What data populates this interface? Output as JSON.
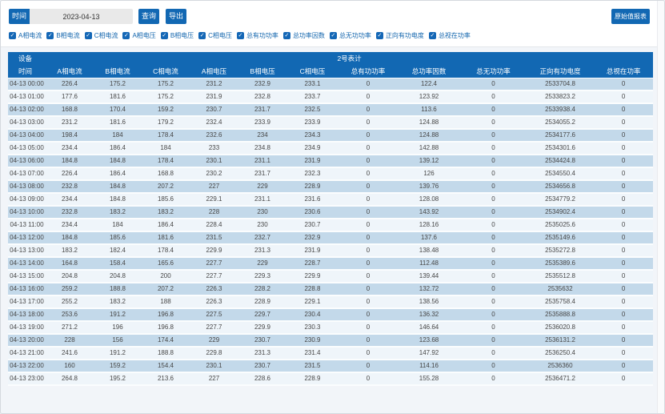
{
  "toolbar": {
    "time_label": "时间",
    "date_value": "2023-04-13",
    "query_label": "查询",
    "export_label": "导出",
    "refresh_label": "原始值报表"
  },
  "filters": {
    "items": [
      {
        "label": "A相电流",
        "checked": true
      },
      {
        "label": "B相电流",
        "checked": true
      },
      {
        "label": "C相电流",
        "checked": true
      },
      {
        "label": "A相电压",
        "checked": true
      },
      {
        "label": "B相电压",
        "checked": true
      },
      {
        "label": "C相电压",
        "checked": true
      },
      {
        "label": "总有功功率",
        "checked": true
      },
      {
        "label": "总功率因数",
        "checked": true
      },
      {
        "label": "总无功功率",
        "checked": true
      },
      {
        "label": "正向有功电度",
        "checked": true
      },
      {
        "label": "总视在功率",
        "checked": true
      }
    ]
  },
  "table": {
    "device_label": "设备",
    "device_name": "2号表计",
    "columns": [
      "时间",
      "A相电流",
      "B相电流",
      "C相电流",
      "A相电压",
      "B相电压",
      "C相电压",
      "总有功功率",
      "总功率因数",
      "总无功功率",
      "正向有功电度",
      "总视在功率"
    ],
    "rows": [
      [
        "04-13 00:00",
        "226.4",
        "175.2",
        "175.2",
        "231.2",
        "232.9",
        "233.1",
        "0",
        "122.4",
        "0",
        "2533704.8",
        "0"
      ],
      [
        "04-13 01:00",
        "177.6",
        "181.6",
        "175.2",
        "231.9",
        "232.8",
        "233.7",
        "0",
        "123.92",
        "0",
        "2533823.2",
        "0"
      ],
      [
        "04-13 02:00",
        "168.8",
        "170.4",
        "159.2",
        "230.7",
        "231.7",
        "232.5",
        "0",
        "113.6",
        "0",
        "2533938.4",
        "0"
      ],
      [
        "04-13 03:00",
        "231.2",
        "181.6",
        "179.2",
        "232.4",
        "233.9",
        "233.9",
        "0",
        "124.88",
        "0",
        "2534055.2",
        "0"
      ],
      [
        "04-13 04:00",
        "198.4",
        "184",
        "178.4",
        "232.6",
        "234",
        "234.3",
        "0",
        "124.88",
        "0",
        "2534177.6",
        "0"
      ],
      [
        "04-13 05:00",
        "234.4",
        "186.4",
        "184",
        "233",
        "234.8",
        "234.9",
        "0",
        "142.88",
        "0",
        "2534301.6",
        "0"
      ],
      [
        "04-13 06:00",
        "184.8",
        "184.8",
        "178.4",
        "230.1",
        "231.1",
        "231.9",
        "0",
        "139.12",
        "0",
        "2534424.8",
        "0"
      ],
      [
        "04-13 07:00",
        "226.4",
        "186.4",
        "168.8",
        "230.2",
        "231.7",
        "232.3",
        "0",
        "126",
        "0",
        "2534550.4",
        "0"
      ],
      [
        "04-13 08:00",
        "232.8",
        "184.8",
        "207.2",
        "227",
        "229",
        "228.9",
        "0",
        "139.76",
        "0",
        "2534656.8",
        "0"
      ],
      [
        "04-13 09:00",
        "234.4",
        "184.8",
        "185.6",
        "229.1",
        "231.1",
        "231.6",
        "0",
        "128.08",
        "0",
        "2534779.2",
        "0"
      ],
      [
        "04-13 10:00",
        "232.8",
        "183.2",
        "183.2",
        "228",
        "230",
        "230.6",
        "0",
        "143.92",
        "0",
        "2534902.4",
        "0"
      ],
      [
        "04-13 11:00",
        "234.4",
        "184",
        "186.4",
        "228.4",
        "230",
        "230.7",
        "0",
        "128.16",
        "0",
        "2535025.6",
        "0"
      ],
      [
        "04-13 12:00",
        "184.8",
        "185.6",
        "181.6",
        "231.5",
        "232.7",
        "232.9",
        "0",
        "137.6",
        "0",
        "2535149.6",
        "0"
      ],
      [
        "04-13 13:00",
        "183.2",
        "182.4",
        "178.4",
        "229.9",
        "231.3",
        "231.9",
        "0",
        "138.48",
        "0",
        "2535272.8",
        "0"
      ],
      [
        "04-13 14:00",
        "164.8",
        "158.4",
        "165.6",
        "227.7",
        "229",
        "228.7",
        "0",
        "112.48",
        "0",
        "2535389.6",
        "0"
      ],
      [
        "04-13 15:00",
        "204.8",
        "204.8",
        "200",
        "227.7",
        "229.3",
        "229.9",
        "0",
        "139.44",
        "0",
        "2535512.8",
        "0"
      ],
      [
        "04-13 16:00",
        "259.2",
        "188.8",
        "207.2",
        "226.3",
        "228.2",
        "228.8",
        "0",
        "132.72",
        "0",
        "2535632",
        "0"
      ],
      [
        "04-13 17:00",
        "255.2",
        "183.2",
        "188",
        "226.3",
        "228.9",
        "229.1",
        "0",
        "138.56",
        "0",
        "2535758.4",
        "0"
      ],
      [
        "04-13 18:00",
        "253.6",
        "191.2",
        "196.8",
        "227.5",
        "229.7",
        "230.4",
        "0",
        "136.32",
        "0",
        "2535888.8",
        "0"
      ],
      [
        "04-13 19:00",
        "271.2",
        "196",
        "196.8",
        "227.7",
        "229.9",
        "230.3",
        "0",
        "146.64",
        "0",
        "2536020.8",
        "0"
      ],
      [
        "04-13 20:00",
        "228",
        "156",
        "174.4",
        "229",
        "230.7",
        "230.9",
        "0",
        "123.68",
        "0",
        "2536131.2",
        "0"
      ],
      [
        "04-13 21:00",
        "241.6",
        "191.2",
        "188.8",
        "229.8",
        "231.3",
        "231.4",
        "0",
        "147.92",
        "0",
        "2536250.4",
        "0"
      ],
      [
        "04-13 22:00",
        "160",
        "159.2",
        "154.4",
        "230.1",
        "230.7",
        "231.5",
        "0",
        "114.16",
        "0",
        "2536360",
        "0"
      ],
      [
        "04-13 23:00",
        "264.8",
        "195.2",
        "213.6",
        "227",
        "228.6",
        "228.9",
        "0",
        "155.28",
        "0",
        "2536471.2",
        "0"
      ]
    ]
  },
  "colors": {
    "theme_blue": "#1268b3",
    "row_stripe_dark": "#c3d9ea",
    "row_stripe_light": "#eff5fa"
  }
}
